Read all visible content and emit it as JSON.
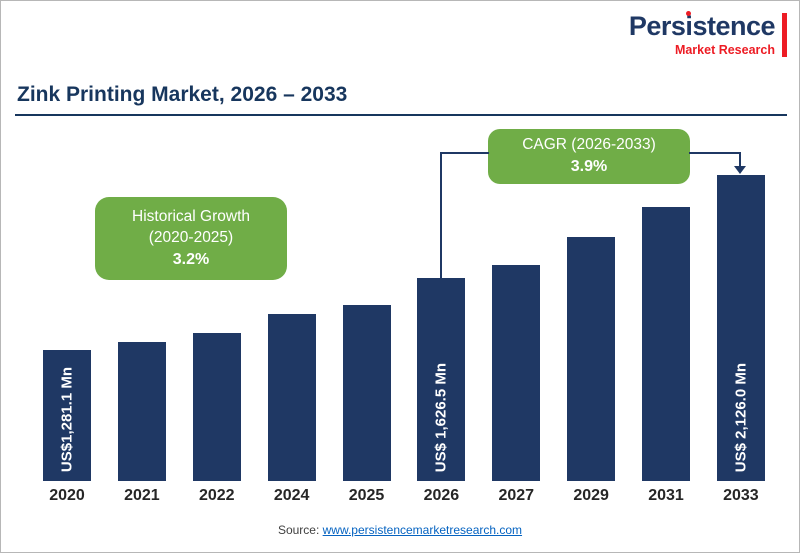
{
  "logo": {
    "brand_pre": "Pers",
    "brand_i": "i",
    "brand_post": "stence",
    "subtitle": "Market Research",
    "brand_color": "#1f3864",
    "accent_color": "#ed1c24"
  },
  "header": {
    "title": "Zink Printing Market, 2026 – 2033"
  },
  "callouts": {
    "historical": {
      "title": "Historical Growth",
      "range": "(2020-2025)",
      "value": "3.2%",
      "bg": "#70ad47"
    },
    "cagr": {
      "title": "CAGR (2026-2033)",
      "value": "3.9%",
      "bg": "#70ad47"
    }
  },
  "chart_data": {
    "type": "bar",
    "title": "Zink Printing Market, 2026 – 2033",
    "unit": "US$ Mn",
    "categories": [
      "2020",
      "2021",
      "2022",
      "2024",
      "2025",
      "2026",
      "2027",
      "2029",
      "2031",
      "2033"
    ],
    "values": [
      1281.1,
      1322.1,
      1364.4,
      1452.9,
      1499.4,
      1626.5,
      1689.9,
      1824.4,
      1969.6,
      2126.0
    ],
    "labeled_points": {
      "2020": "US$1,281.1 Mn",
      "2026": "US$ 1,626.5 Mn",
      "2033": "US$ 2,126.0 Mn"
    },
    "bar_color": "#1f3864",
    "legend": "none",
    "grid": "off"
  },
  "footer": {
    "source_label": "Source:",
    "source_link": "www.persistencemarketresearch.com"
  }
}
